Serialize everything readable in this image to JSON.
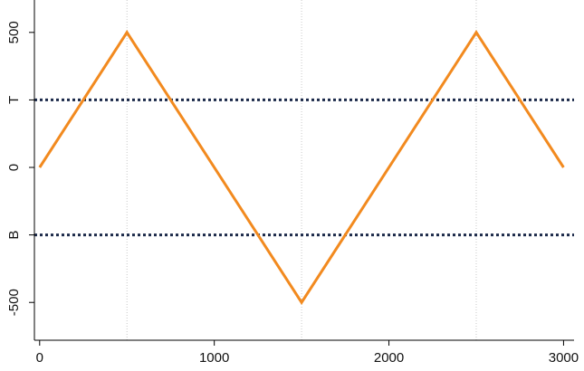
{
  "chart_data": {
    "type": "line",
    "title": "",
    "xlabel": "",
    "ylabel": "",
    "xlim": [
      -30,
      3060
    ],
    "ylim": [
      -640,
      620
    ],
    "x_ticks": [
      {
        "value": 0,
        "label": "0"
      },
      {
        "value": 1000,
        "label": "1000"
      },
      {
        "value": 2000,
        "label": "2000"
      },
      {
        "value": 3000,
        "label": "3000"
      }
    ],
    "y_ticks": [
      {
        "value": 500,
        "label": "500"
      },
      {
        "value": 250,
        "label": "T"
      },
      {
        "value": 0,
        "label": "0"
      },
      {
        "value": -250,
        "label": "B"
      },
      {
        "value": -500,
        "label": "-500"
      }
    ],
    "vertical_gridlines_x": [
      500,
      1500,
      2500
    ],
    "series": [
      {
        "color": "#f28a1f",
        "x": [
          0,
          500,
          1500,
          2500,
          3000
        ],
        "y": [
          0,
          500,
          -500,
          500,
          0
        ]
      }
    ],
    "reference_lines": [
      {
        "y": 250,
        "label": "T",
        "style": "dotted",
        "color": "#1c2a4a"
      },
      {
        "y": -250,
        "label": "B",
        "style": "dotted",
        "color": "#1c2a4a"
      }
    ],
    "grid": false,
    "legend": "none"
  }
}
